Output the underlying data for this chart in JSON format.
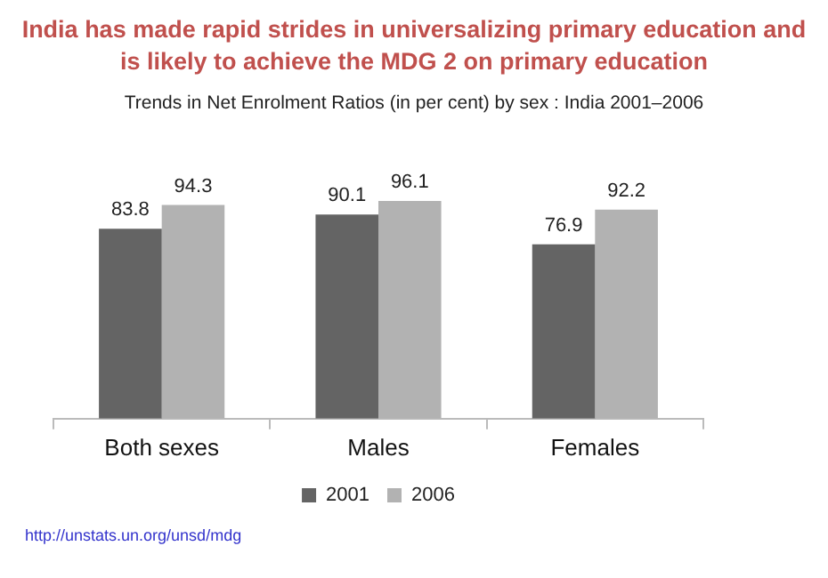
{
  "chart_data": {
    "type": "bar",
    "title": "India has made rapid strides in universalizing primary education and is likely to achieve the MDG 2 on primary education",
    "subtitle": "Trends in Net Enrolment Ratios (in per cent) by sex : India 2001–2006",
    "categories": [
      "Both sexes",
      "Males",
      "Females"
    ],
    "series": [
      {
        "name": "2001",
        "color": "#646464",
        "values": [
          83.8,
          90.1,
          76.9
        ]
      },
      {
        "name": "2006",
        "color": "#b2b2b2",
        "values": [
          94.3,
          96.1,
          92.2
        ]
      }
    ],
    "tick_labels": "x",
    "data_labels": true,
    "legend": "bottom",
    "annotations": [
      "http://unstats.un.org/unsd/mdg"
    ]
  }
}
